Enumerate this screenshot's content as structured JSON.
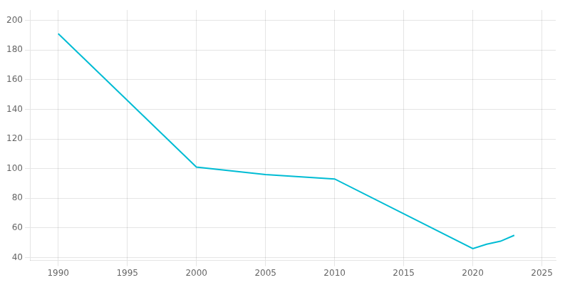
{
  "chart_data": {
    "type": "line",
    "x": [
      1990,
      2000,
      2005,
      2010,
      2020,
      2021,
      2022,
      2023
    ],
    "values": [
      191,
      101,
      96,
      93,
      46,
      49,
      51,
      55
    ],
    "color": "#00BCD4",
    "xlim": [
      1988,
      2026
    ],
    "xticks": [
      1990,
      1995,
      2000,
      2005,
      2010,
      2015,
      2020,
      2025
    ],
    "ylim": [
      38,
      207
    ],
    "yticks": [
      40,
      60,
      80,
      100,
      120,
      140,
      160,
      180,
      200
    ],
    "grid": true
  }
}
